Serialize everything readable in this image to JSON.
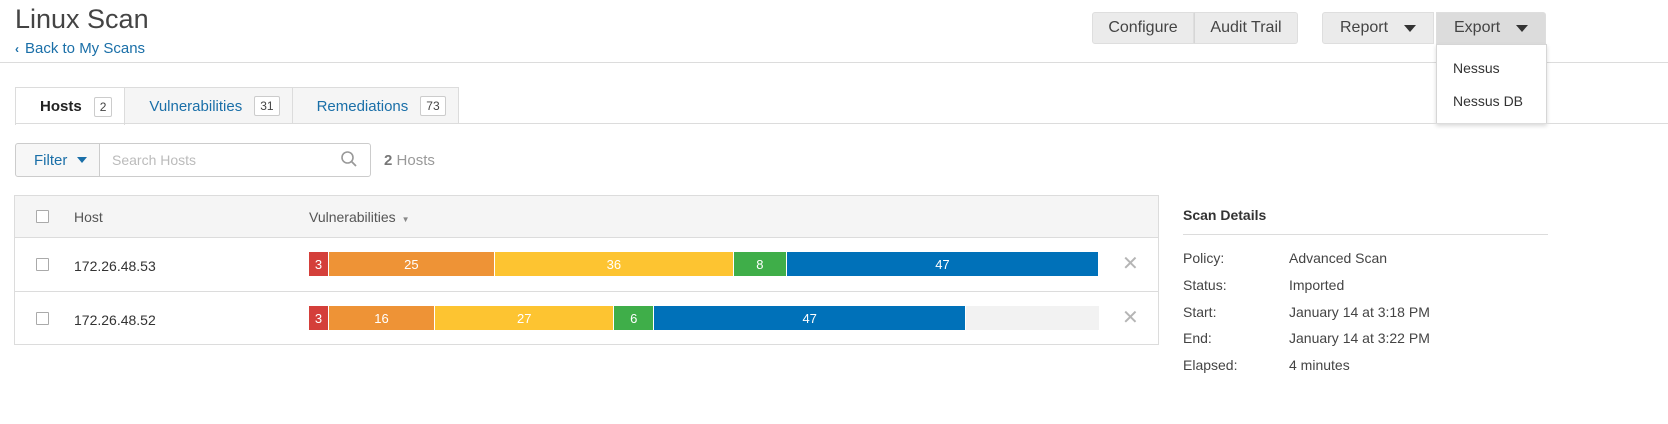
{
  "page": {
    "title": "Linux Scan",
    "back_link": "Back to My Scans"
  },
  "toolbar": {
    "configure": "Configure",
    "audit_trail": "Audit Trail",
    "report": "Report",
    "export": "Export",
    "export_menu": [
      "Nessus",
      "Nessus DB"
    ]
  },
  "tabs": [
    {
      "label": "Hosts",
      "count": "2"
    },
    {
      "label": "Vulnerabilities",
      "count": "31"
    },
    {
      "label": "Remediations",
      "count": "73"
    }
  ],
  "filter": {
    "label": "Filter",
    "search_placeholder": "Search Hosts",
    "count_number": "2",
    "count_label": "Hosts"
  },
  "table": {
    "headers": {
      "host": "Host",
      "vulnerabilities": "Vulnerabilities"
    },
    "rows": [
      {
        "host": "172.26.48.53",
        "critical": 3,
        "high": 25,
        "medium": 36,
        "low": 8,
        "info": 47
      },
      {
        "host": "172.26.48.52",
        "critical": 3,
        "high": 16,
        "medium": 27,
        "low": 6,
        "info": 47
      }
    ]
  },
  "scan_details": {
    "title": "Scan Details",
    "items": [
      {
        "label": "Policy:",
        "value": "Advanced Scan"
      },
      {
        "label": "Status:",
        "value": "Imported"
      },
      {
        "label": "Start:",
        "value": "January 14 at 3:18 PM"
      },
      {
        "label": "End:",
        "value": "January 14 at 3:22 PM"
      },
      {
        "label": "Elapsed:",
        "value": "4 minutes"
      }
    ]
  },
  "colors": {
    "critical": "#d43f3a",
    "high": "#ee9336",
    "medium": "#fdc431",
    "low": "#3fae49",
    "info": "#0071b9",
    "link": "#1a6fa8"
  }
}
